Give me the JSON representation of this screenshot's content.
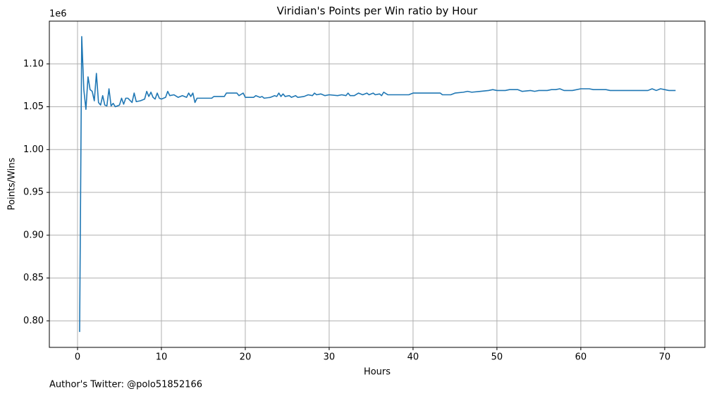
{
  "chart_data": {
    "type": "line",
    "title": "Viridian's Points per Win ratio by Hour",
    "x_label": "Hours",
    "y_label": "Points/Wins",
    "y_offset_label": "1e6",
    "footnote": "Author's Twitter: @polo51852166",
    "xlim": [
      -3.36,
      74.8
    ],
    "ylim": [
      0.769,
      1.15
    ],
    "xticks": [
      0,
      10,
      20,
      30,
      40,
      50,
      60,
      70
    ],
    "yticks": [
      {
        "value": 0.8,
        "label": "0.80"
      },
      {
        "value": 0.85,
        "label": "0.85"
      },
      {
        "value": 0.9,
        "label": "0.90"
      },
      {
        "value": 0.95,
        "label": "0.95"
      },
      {
        "value": 1.0,
        "label": "1.00"
      },
      {
        "value": 1.05,
        "label": "1.05"
      },
      {
        "value": 1.1,
        "label": "1.10"
      }
    ],
    "grid": true,
    "x": [
      0.25,
      0.5,
      0.75,
      1.0,
      1.25,
      1.5,
      1.75,
      2.0,
      2.25,
      2.5,
      2.75,
      3.0,
      3.25,
      3.5,
      3.75,
      4.0,
      4.25,
      4.5,
      5.0,
      5.25,
      5.5,
      5.75,
      6.0,
      6.5,
      6.75,
      7.0,
      7.5,
      8.0,
      8.25,
      8.5,
      8.75,
      9.0,
      9.25,
      9.5,
      9.75,
      10.0,
      10.5,
      10.75,
      11.0,
      11.5,
      12.0,
      12.5,
      13.0,
      13.25,
      13.5,
      13.75,
      14.0,
      14.25,
      16.0,
      16.25,
      17.5,
      17.75,
      19.0,
      19.25,
      19.75,
      20.0,
      21.0,
      21.25,
      21.75,
      22.0,
      22.25,
      23.0,
      23.5,
      23.75,
      24.0,
      24.25,
      24.5,
      24.75,
      25.25,
      25.5,
      26.0,
      26.25,
      27.0,
      27.5,
      28.0,
      28.25,
      28.5,
      29.0,
      29.5,
      30.0,
      31.0,
      31.5,
      32.0,
      32.25,
      32.5,
      33.0,
      33.5,
      34.0,
      34.5,
      34.75,
      35.25,
      35.5,
      36.0,
      36.25,
      36.5,
      37.0,
      39.5,
      39.75,
      40.0,
      43.25,
      43.5,
      44.5,
      45.0,
      46.0,
      46.5,
      47.0,
      48.0,
      49.0,
      49.5,
      50.0,
      51.0,
      51.5,
      52.5,
      53.0,
      54.0,
      54.5,
      55.0,
      56.0,
      56.5,
      57.0,
      57.5,
      58.0,
      59.0,
      60.0,
      61.0,
      61.5,
      63.0,
      63.5,
      68.0,
      68.5,
      69.0,
      69.5,
      70.0,
      70.5,
      71.3
    ],
    "series": [
      {
        "name": "Points/Wins",
        "color": "#1f77b4",
        "values": [
          0.787,
          1.132,
          1.07,
          1.047,
          1.085,
          1.07,
          1.068,
          1.057,
          1.089,
          1.055,
          1.052,
          1.063,
          1.052,
          1.051,
          1.071,
          1.051,
          1.054,
          1.05,
          1.052,
          1.06,
          1.053,
          1.06,
          1.06,
          1.055,
          1.066,
          1.056,
          1.057,
          1.059,
          1.068,
          1.062,
          1.067,
          1.061,
          1.059,
          1.066,
          1.06,
          1.059,
          1.061,
          1.068,
          1.063,
          1.064,
          1.061,
          1.063,
          1.061,
          1.066,
          1.062,
          1.066,
          1.055,
          1.06,
          1.06,
          1.062,
          1.062,
          1.066,
          1.066,
          1.063,
          1.066,
          1.061,
          1.061,
          1.063,
          1.061,
          1.062,
          1.06,
          1.061,
          1.063,
          1.062,
          1.066,
          1.062,
          1.065,
          1.062,
          1.063,
          1.061,
          1.063,
          1.061,
          1.062,
          1.064,
          1.063,
          1.066,
          1.064,
          1.065,
          1.063,
          1.064,
          1.063,
          1.064,
          1.063,
          1.066,
          1.063,
          1.063,
          1.066,
          1.064,
          1.066,
          1.064,
          1.066,
          1.064,
          1.065,
          1.063,
          1.067,
          1.064,
          1.064,
          1.065,
          1.066,
          1.066,
          1.064,
          1.064,
          1.066,
          1.067,
          1.068,
          1.067,
          1.068,
          1.069,
          1.07,
          1.069,
          1.069,
          1.07,
          1.07,
          1.068,
          1.069,
          1.068,
          1.069,
          1.069,
          1.07,
          1.07,
          1.071,
          1.069,
          1.069,
          1.071,
          1.071,
          1.07,
          1.07,
          1.069,
          1.069,
          1.071,
          1.069,
          1.071,
          1.07,
          1.069,
          1.069
        ]
      }
    ]
  }
}
